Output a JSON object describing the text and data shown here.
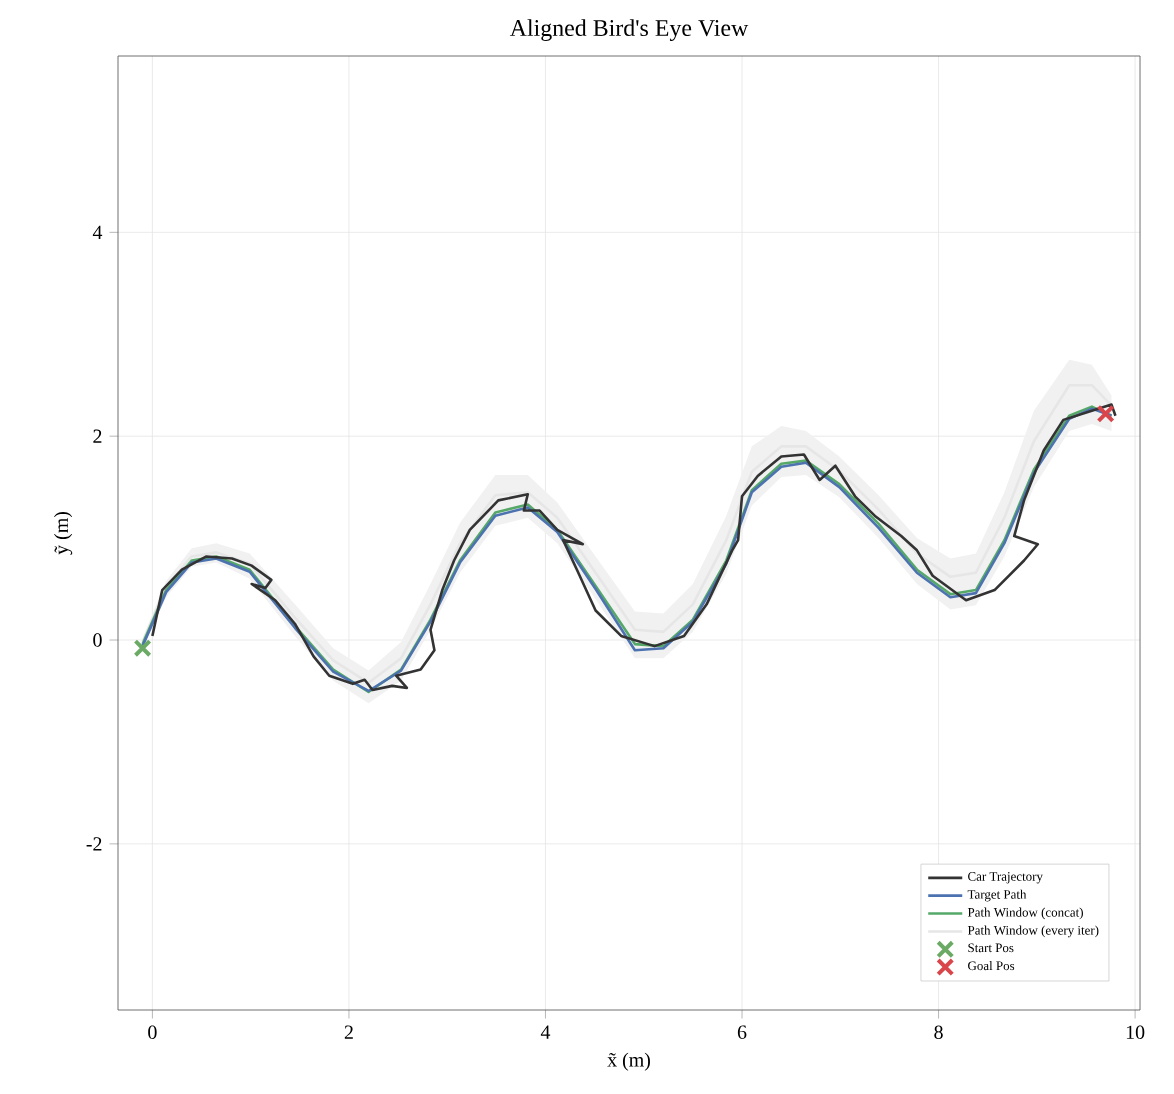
{
  "chart_data": {
    "type": "line",
    "title": "Aligned Bird's Eye View",
    "xlabel": "x̃ (m)",
    "ylabel": "ỹ (m)",
    "xlim": [
      -0.35,
      10.05
    ],
    "ylim": [
      -3.63,
      5.73
    ],
    "xticks": [
      0,
      2,
      4,
      6,
      8,
      10
    ],
    "yticks": [
      -2,
      0,
      2,
      4
    ],
    "grid": true,
    "legend": "bottom right",
    "series": [
      {
        "name": "Car Trajectory",
        "color": "#333333",
        "marker": "none",
        "x": [
          0,
          0.1,
          0.3,
          0.55,
          0.81,
          1.01,
          1.21,
          1.15,
          1.01,
          1.25,
          1.45,
          1.64,
          1.8,
          2.04,
          2.16,
          2.24,
          2.44,
          2.59,
          2.48,
          2.73,
          2.87,
          2.83,
          2.95,
          3.07,
          3.23,
          3.52,
          3.82,
          3.78,
          3.94,
          4.12,
          4.38,
          4.18,
          4.32,
          4.51,
          4.77,
          5.11,
          5.41,
          5.64,
          5.9,
          5.96,
          6.0,
          6.16,
          6.4,
          6.63,
          6.79,
          6.95,
          7.15,
          7.35,
          7.62,
          7.78,
          7.94,
          8.28,
          8.57,
          8.87,
          9.01,
          8.77,
          8.87,
          9.07,
          9.27,
          9.56,
          9.76,
          9.8
        ],
        "values": [
          0.04,
          0.49,
          0.69,
          0.82,
          0.8,
          0.73,
          0.59,
          0.51,
          0.55,
          0.39,
          0.16,
          -0.16,
          -0.35,
          -0.43,
          -0.39,
          -0.49,
          -0.45,
          -0.47,
          -0.35,
          -0.29,
          -0.1,
          0.1,
          0.49,
          0.78,
          1.08,
          1.37,
          1.43,
          1.27,
          1.27,
          1.08,
          0.94,
          0.98,
          0.69,
          0.29,
          0.04,
          -0.06,
          0.04,
          0.35,
          0.88,
          0.98,
          1.41,
          1.61,
          1.8,
          1.82,
          1.57,
          1.71,
          1.41,
          1.22,
          1.02,
          0.88,
          0.63,
          0.39,
          0.49,
          0.78,
          0.94,
          1.02,
          1.37,
          1.86,
          2.16,
          2.25,
          2.31,
          2.2
        ]
      },
      {
        "name": "Target Path",
        "color": "#4c72b0",
        "marker": "none",
        "x": [
          -0.1,
          0.14,
          0.4,
          0.65,
          0.99,
          1.45,
          1.84,
          2.2,
          2.53,
          2.83,
          3.13,
          3.49,
          3.82,
          4.12,
          4.51,
          4.91,
          5.2,
          5.5,
          5.84,
          6.1,
          6.4,
          6.65,
          6.99,
          7.39,
          7.78,
          8.12,
          8.38,
          8.67,
          8.97,
          9.33,
          9.56,
          9.76
        ],
        "values": [
          -0.06,
          0.47,
          0.76,
          0.8,
          0.67,
          0.12,
          -0.31,
          -0.5,
          -0.3,
          0.18,
          0.76,
          1.22,
          1.3,
          1.06,
          0.5,
          -0.1,
          -0.08,
          0.18,
          0.75,
          1.45,
          1.7,
          1.74,
          1.5,
          1.1,
          0.66,
          0.42,
          0.46,
          0.95,
          1.64,
          2.17,
          2.27,
          2.2
        ]
      },
      {
        "name": "Path Window (concat)",
        "color": "#55a868",
        "marker": "none",
        "x": [
          -0.1,
          0.14,
          0.4,
          0.65,
          0.99,
          1.45,
          1.84,
          2.2,
          2.53,
          2.83,
          3.13,
          3.49,
          3.82,
          4.12,
          4.51,
          4.91,
          5.2,
          5.5,
          5.84,
          6.1,
          6.4,
          6.65,
          6.99,
          7.39,
          7.78,
          8.12,
          8.38,
          8.67,
          8.97,
          9.33,
          9.56,
          9.76
        ],
        "values": [
          -0.04,
          0.49,
          0.78,
          0.82,
          0.69,
          0.14,
          -0.29,
          -0.51,
          -0.29,
          0.2,
          0.78,
          1.25,
          1.33,
          1.08,
          0.53,
          -0.04,
          -0.06,
          0.2,
          0.78,
          1.47,
          1.73,
          1.76,
          1.53,
          1.14,
          0.69,
          0.45,
          0.49,
          0.98,
          1.67,
          2.2,
          2.29,
          2.2
        ]
      },
      {
        "name": "Path Window (every iter)",
        "color": "#e6e6e6",
        "marker": "none",
        "x": [
          -0.1,
          0.14,
          0.4,
          0.65,
          0.99,
          1.45,
          1.84,
          2.2,
          2.53,
          2.83,
          3.13,
          3.49,
          3.82,
          4.12,
          4.51,
          4.91,
          5.2,
          5.5,
          5.84,
          6.1,
          6.4,
          6.65,
          6.99,
          7.39,
          7.78,
          8.12,
          8.38,
          8.67,
          8.97,
          9.33,
          9.56,
          9.76
        ],
        "values": [
          -0.02,
          0.52,
          0.82,
          0.86,
          0.75,
          0.22,
          -0.2,
          -0.42,
          -0.18,
          0.35,
          0.95,
          1.42,
          1.45,
          1.2,
          0.66,
          0.1,
          0.08,
          0.35,
          0.98,
          1.65,
          1.9,
          1.9,
          1.66,
          1.28,
          0.85,
          0.62,
          0.66,
          1.2,
          1.95,
          2.5,
          2.5,
          2.3
        ],
        "lower": [
          -0.08,
          0.42,
          0.72,
          0.76,
          0.6,
          0.04,
          -0.4,
          -0.62,
          -0.4,
          0.1,
          0.66,
          1.12,
          1.2,
          0.95,
          0.4,
          -0.18,
          -0.18,
          0.08,
          0.65,
          1.32,
          1.6,
          1.62,
          1.4,
          1.0,
          0.55,
          0.3,
          0.34,
          0.82,
          1.5,
          2.05,
          2.12,
          2.05
        ],
        "upper": [
          0.02,
          0.58,
          0.9,
          0.95,
          0.85,
          0.35,
          -0.08,
          -0.3,
          -0.02,
          0.55,
          1.15,
          1.62,
          1.62,
          1.35,
          0.82,
          0.28,
          0.26,
          0.55,
          1.22,
          1.9,
          2.1,
          2.05,
          1.8,
          1.42,
          1.0,
          0.8,
          0.85,
          1.45,
          2.25,
          2.75,
          2.7,
          2.4
        ]
      },
      {
        "name": "Start Pos",
        "type": "scatter",
        "color": "#6aaa64",
        "marker": "cross",
        "x": [
          -0.1
        ],
        "values": [
          -0.08
        ]
      },
      {
        "name": "Goal Pos",
        "type": "scatter",
        "color": "#d9454a",
        "marker": "cross",
        "x": [
          9.7
        ],
        "values": [
          2.22
        ]
      }
    ]
  }
}
